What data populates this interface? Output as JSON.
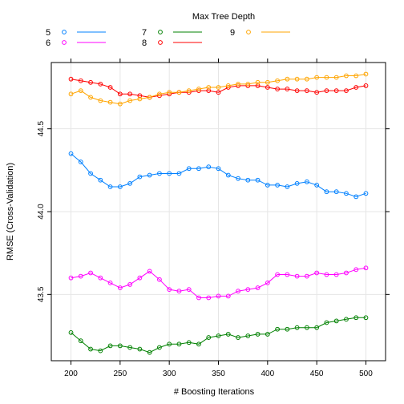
{
  "chart_data": {
    "type": "line",
    "xlabel": "# Boosting Iterations",
    "ylabel": "RMSE (Cross-Validation)",
    "xlim": [
      180,
      520
    ],
    "ylim": [
      43.1,
      44.9
    ],
    "xticks": [
      200,
      250,
      300,
      350,
      400,
      450,
      500
    ],
    "yticks": [
      43.5,
      44.0,
      44.5
    ],
    "grid": true,
    "legend": {
      "title": "Max Tree Depth",
      "placement": "top"
    },
    "x": [
      200,
      210,
      220,
      230,
      240,
      250,
      260,
      270,
      280,
      290,
      300,
      310,
      320,
      330,
      340,
      350,
      360,
      370,
      380,
      390,
      400,
      410,
      420,
      430,
      440,
      450,
      460,
      470,
      480,
      490,
      500
    ],
    "series": [
      {
        "name": "5",
        "color": "#0080ff",
        "values": [
          44.35,
          44.3,
          44.23,
          44.19,
          44.15,
          44.15,
          44.17,
          44.21,
          44.22,
          44.23,
          44.23,
          44.23,
          44.26,
          44.26,
          44.27,
          44.26,
          44.22,
          44.2,
          44.19,
          44.19,
          44.16,
          44.16,
          44.15,
          44.17,
          44.18,
          44.16,
          44.12,
          44.12,
          44.11,
          44.09,
          44.11
        ]
      },
      {
        "name": "6",
        "color": "#ff00ff",
        "values": [
          43.6,
          43.61,
          43.63,
          43.6,
          43.57,
          43.54,
          43.56,
          43.6,
          43.64,
          43.59,
          43.53,
          43.52,
          43.53,
          43.48,
          43.48,
          43.49,
          43.49,
          43.52,
          43.53,
          43.54,
          43.57,
          43.62,
          43.62,
          43.61,
          43.61,
          43.63,
          43.62,
          43.62,
          43.63,
          43.65,
          43.66
        ]
      },
      {
        "name": "7",
        "color": "#008000",
        "values": [
          43.27,
          43.22,
          43.17,
          43.16,
          43.19,
          43.19,
          43.18,
          43.17,
          43.15,
          43.18,
          43.2,
          43.2,
          43.21,
          43.2,
          43.24,
          43.25,
          43.26,
          43.24,
          43.25,
          43.26,
          43.26,
          43.29,
          43.29,
          43.3,
          43.3,
          43.3,
          43.33,
          43.34,
          43.35,
          43.36,
          43.36
        ]
      },
      {
        "name": "8",
        "color": "#ff0000",
        "values": [
          44.8,
          44.79,
          44.78,
          44.77,
          44.75,
          44.71,
          44.71,
          44.7,
          44.69,
          44.7,
          44.71,
          44.72,
          44.72,
          44.73,
          44.73,
          44.72,
          44.75,
          44.76,
          44.76,
          44.76,
          44.75,
          44.74,
          44.74,
          44.73,
          44.73,
          44.72,
          44.73,
          44.73,
          44.73,
          44.75,
          44.76
        ]
      },
      {
        "name": "9",
        "color": "#ffa500",
        "values": [
          44.71,
          44.73,
          44.69,
          44.67,
          44.66,
          44.65,
          44.67,
          44.68,
          44.69,
          44.71,
          44.72,
          44.72,
          44.73,
          44.74,
          44.75,
          44.75,
          44.76,
          44.77,
          44.77,
          44.78,
          44.78,
          44.79,
          44.8,
          44.8,
          44.8,
          44.81,
          44.81,
          44.81,
          44.82,
          44.82,
          44.83
        ]
      }
    ]
  }
}
